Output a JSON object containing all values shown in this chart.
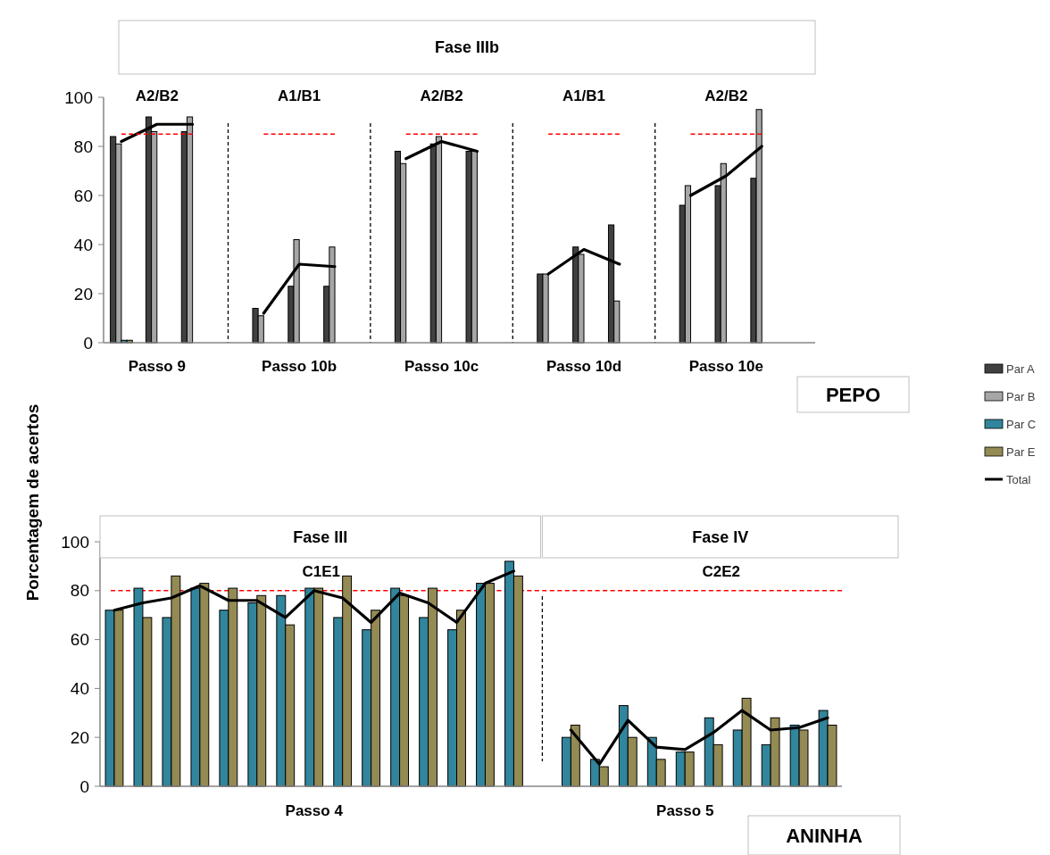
{
  "chart_data": [
    {
      "type": "bar",
      "title": "Fase IIIb",
      "ylabel": "Porcentagem de acertos",
      "legend": "right",
      "categories": [
        null,
        "Passo 9",
        null,
        null,
        null,
        "Passo 10b",
        null,
        null,
        null,
        "Passo 10c",
        null,
        null,
        null,
        "Passo 10d",
        null,
        null,
        null,
        "Passo 10e",
        null,
        null
      ],
      "series": [
        {
          "name": "Par A",
          "color": "#404040",
          "values": [
            84,
            92,
            86,
            null,
            14,
            23,
            23,
            null,
            78,
            81,
            78,
            null,
            28,
            39,
            48,
            null,
            56,
            64,
            67,
            null
          ]
        },
        {
          "name": "Par B",
          "color": "#a6a6a6",
          "values": [
            81,
            86,
            92,
            null,
            11,
            42,
            39,
            null,
            73,
            84,
            78,
            null,
            28,
            36,
            17,
            null,
            64,
            73,
            95,
            null
          ]
        },
        {
          "name": "Par C",
          "color": "#31859c",
          "values": [
            1,
            null,
            null,
            null,
            null,
            null,
            null,
            null,
            null,
            null,
            null,
            null,
            null,
            null,
            null,
            null,
            null,
            null,
            null,
            null
          ]
        },
        {
          "name": "Par E",
          "color": "#948a54",
          "values": [
            1,
            null,
            null,
            null,
            null,
            null,
            null,
            null,
            null,
            null,
            null,
            null,
            null,
            null,
            null,
            null,
            null,
            null,
            null,
            null
          ]
        },
        {
          "name": "Total",
          "type": "line",
          "color": "#000000",
          "values": [
            82,
            89,
            89,
            null,
            12,
            32,
            31,
            null,
            75,
            82,
            78,
            null,
            28,
            38,
            32,
            null,
            60,
            68,
            80,
            null
          ]
        },
        {
          "type": "line",
          "color": "#ff0000",
          "line_style": "dashed",
          "values": [
            85,
            85,
            85,
            null,
            85,
            85,
            85,
            null,
            85,
            85,
            85,
            null,
            85,
            85,
            85,
            null,
            85,
            85,
            85,
            null
          ]
        }
      ],
      "ylim": [
        0,
        100
      ],
      "yticks": [
        0,
        20,
        40,
        60,
        80,
        100
      ],
      "annotations": [
        "A2/B2",
        "A1/B1",
        "A2/B2",
        "A1/B1",
        "A2/B2",
        "PEPO"
      ]
    },
    {
      "type": "bar",
      "subtitle": "ANINHA",
      "categories": [
        null,
        null,
        null,
        null,
        null,
        null,
        null,
        "Passo 4",
        null,
        null,
        null,
        null,
        null,
        null,
        null,
        null,
        null,
        null,
        null,
        null,
        "Passo 5",
        null,
        null,
        null,
        null,
        null
      ],
      "series": [
        {
          "color": "#31859c",
          "values": [
            72,
            81,
            69,
            81,
            72,
            75,
            78,
            81,
            69,
            64,
            81,
            69,
            64,
            83,
            92,
            null,
            20,
            11,
            33,
            20,
            14,
            28,
            23,
            17,
            25,
            31
          ]
        },
        {
          "color": "#948a54",
          "values": [
            72,
            69,
            86,
            83,
            81,
            78,
            66,
            81,
            86,
            72,
            78,
            81,
            72,
            83,
            86,
            null,
            25,
            8,
            20,
            11,
            14,
            17,
            36,
            28,
            23,
            25
          ]
        },
        {
          "type": "line",
          "color": "#000000",
          "values": [
            72,
            75,
            77,
            82,
            76,
            76,
            69,
            80,
            77,
            67,
            79,
            75,
            67,
            83,
            88,
            null,
            23,
            9,
            27,
            16,
            15,
            22,
            31,
            23,
            24,
            28
          ]
        }
      ],
      "ylim": [
        0,
        100
      ],
      "yticks": [
        0,
        20,
        40,
        60,
        80,
        100
      ],
      "ref_lines": [
        {
          "axis": "y",
          "value": 80,
          "color": "#ff0000",
          "line_style": "dashed"
        }
      ],
      "annotations": [
        "Fase III",
        "Fase IV",
        "C1E1",
        "C2E2"
      ]
    }
  ]
}
